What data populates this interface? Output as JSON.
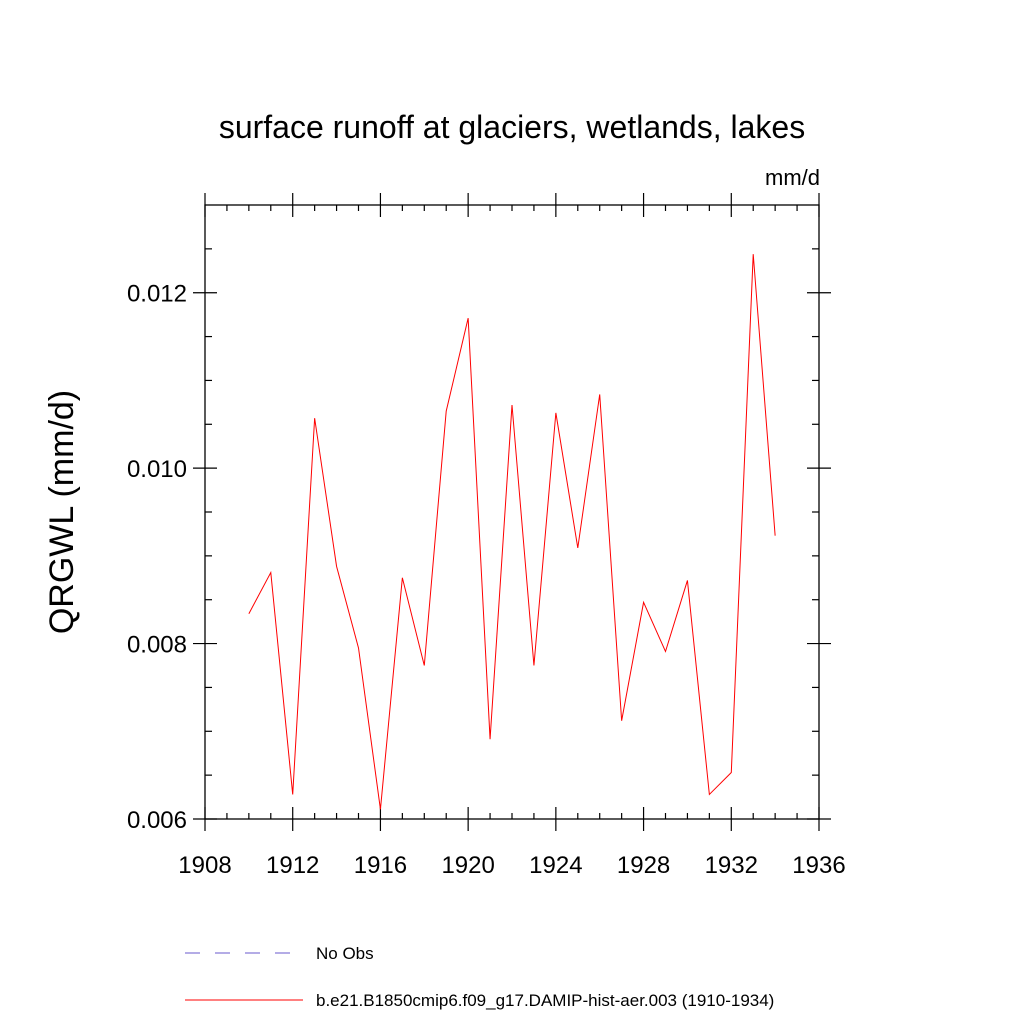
{
  "chart_data": {
    "type": "line",
    "title": "surface runoff at glaciers, wetlands, lakes",
    "units": "mm/d",
    "ylabel": "QRGWL  (mm/d)",
    "xlabel": "",
    "xlim": [
      1908,
      1936
    ],
    "ylim": [
      0.006,
      0.013
    ],
    "x_ticks": [
      1908,
      1912,
      1916,
      1920,
      1924,
      1928,
      1932,
      1936
    ],
    "x_tick_labels": [
      "1908",
      "1912",
      "1916",
      "1920",
      "1924",
      "1928",
      "1932",
      "1936"
    ],
    "y_ticks": [
      0.006,
      0.008,
      0.01,
      0.012
    ],
    "y_tick_labels": [
      "0.006",
      "0.008",
      "0.010",
      "0.012"
    ],
    "grid": false,
    "legend_position": "bottom",
    "series": [
      {
        "name": "b.e21.B1850cmip6.f09_g17.DAMIP-hist-aer.003 (1910-1934)",
        "color": "#ff0000",
        "style": "solid",
        "x": [
          1910,
          1911,
          1912,
          1913,
          1914,
          1915,
          1916,
          1917,
          1918,
          1919,
          1920,
          1921,
          1922,
          1923,
          1924,
          1925,
          1926,
          1927,
          1928,
          1929,
          1930,
          1931,
          1932,
          1933,
          1934
        ],
        "values": [
          0.00834,
          0.00881,
          0.00628,
          0.01057,
          0.00888,
          0.00795,
          0.00611,
          0.00875,
          0.00775,
          0.01065,
          0.01171,
          0.00691,
          0.01072,
          0.00775,
          0.01063,
          0.00909,
          0.01084,
          0.00712,
          0.00847,
          0.00791,
          0.00872,
          0.00628,
          0.00653,
          0.01244,
          0.00923
        ]
      }
    ],
    "legend": [
      {
        "label": "No Obs",
        "color": "#6a5acd",
        "style": "dashed"
      },
      {
        "label": "b.e21.B1850cmip6.f09_g17.DAMIP-hist-aer.003 (1910-1934)",
        "color": "#ff0000",
        "style": "solid"
      }
    ]
  }
}
